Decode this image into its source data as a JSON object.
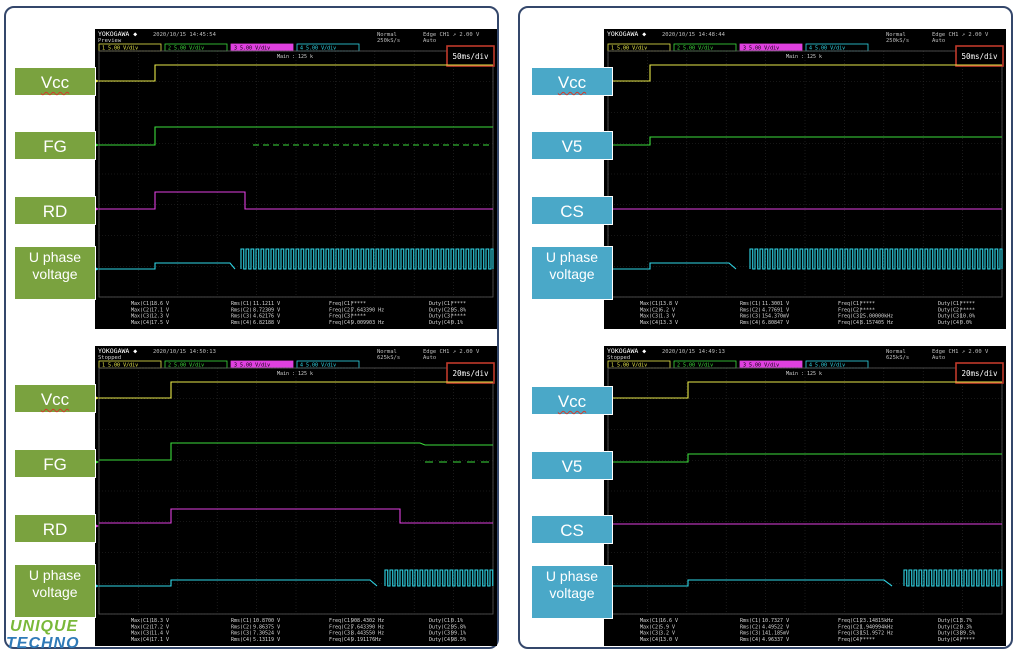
{
  "scopes": [
    {
      "brand": "YOKOGAWA ◆",
      "date": "2020/10/15 14:45:54",
      "status": "Preview",
      "trig_mode": "Normal",
      "sample_rate": "250kS/s",
      "trigger": "Edge CH1 ↗ 2.00 V",
      "trig_sub": "Auto",
      "main_label": "Main : 125 k",
      "timebase": "50ms/div",
      "channels": [
        "5.00 V/div",
        "5.00 V/div",
        "5.00 V/div",
        "5.00 V/div"
      ],
      "measurements": [
        [
          "Max(C1)",
          "18.6 V",
          "Rms(C1)",
          "11.1211 V",
          "Freq(C1)",
          "*****",
          "Duty(C1)",
          "*****"
        ],
        [
          "Max(C2)",
          "17.1 V",
          "Rms(C2)",
          "8.72309 V",
          "Freq(C2)",
          "7.643390 Hz",
          "Duty(C2)",
          "95.8%"
        ],
        [
          "Max(C3)",
          "12.3 V",
          "Rms(C3)",
          "4.62176 V",
          "Freq(C3)",
          "*****",
          "Duty(C3)",
          "*****"
        ],
        [
          "Max(C4)",
          "17.5 V",
          "Rms(C4)",
          "6.82188 V",
          "Freq(C4)",
          "9.009903 Hz",
          "Duty(C4)",
          "0.1%"
        ]
      ]
    },
    {
      "brand": "YOKOGAWA ◆",
      "date": "2020/10/15 14:48:44",
      "status": "",
      "trig_mode": "Normal",
      "sample_rate": "250kS/s",
      "trigger": "Edge CH1 ↗ 2.00 V",
      "trig_sub": "Auto",
      "main_label": "Main : 125 k",
      "timebase": "50ms/div",
      "channels": [
        "5.00 V/div",
        "5.00 V/div",
        "5.00 V/div",
        "5.00 V/div"
      ],
      "measurements": [
        [
          "Max(C1)",
          "13.8 V",
          "Rms(C1)",
          "11.3001 V",
          "Freq(C1)",
          "*****",
          "Duty(C1)",
          "*****"
        ],
        [
          "Max(C2)",
          "6.2 V",
          "Rms(C2)",
          "4.77691 V",
          "Freq(C2)",
          "*****",
          "Duty(C2)",
          "*****"
        ],
        [
          "Max(C3)",
          "1.3 V",
          "Rms(C3)",
          "154.370mV",
          "Freq(C3)",
          "25.00000kHz",
          "Duty(C3)",
          "10.0%"
        ],
        [
          "Max(C4)",
          "13.3 V",
          "Rms(C4)",
          "6.80847 V",
          "Freq(C4)",
          "8.157405 Hz",
          "Duty(C4)",
          "0.0%"
        ]
      ]
    },
    {
      "brand": "YOKOGAWA ◆",
      "date": "2020/10/15 14:50:13",
      "status": "Stopped",
      "trig_mode": "Normal",
      "sample_rate": "625kS/s",
      "trigger": "Edge CH1 ↗ 2.00 V",
      "trig_sub": "Auto",
      "main_label": "Main : 125 k",
      "timebase": "20ms/div",
      "channels": [
        "5.00 V/div",
        "5.00 V/div",
        "5.00 V/div",
        "5.00 V/div"
      ],
      "measurements": [
        [
          "Max(C1)",
          "18.3 V",
          "Rms(C1)",
          "10.8700 V",
          "Freq(C1)",
          "908.4302 Hz",
          "Duty(C1)",
          "0.1%"
        ],
        [
          "Max(C2)",
          "17.2 V",
          "Rms(C2)",
          "9.86375 V",
          "Freq(C2)",
          "7.643390 Hz",
          "Duty(C2)",
          "95.8%"
        ],
        [
          "Max(C3)",
          "11.4 V",
          "Rms(C3)",
          "7.30524 V",
          "Freq(C3)",
          "8.443550 Hz",
          "Duty(C3)",
          "99.1%"
        ],
        [
          "Max(C4)",
          "17.1 V",
          "Rms(C4)",
          "5.13119 V",
          "Freq(C4)",
          "9.191176Hz",
          "Duty(C4)",
          "98.5%"
        ]
      ]
    },
    {
      "brand": "YOKOGAWA ◆",
      "date": "2020/10/15 14:49:13",
      "status": "Stopped",
      "trig_mode": "Normal",
      "sample_rate": "625kS/s",
      "trigger": "Edge CH1 ↗ 2.00 V",
      "trig_sub": "Auto",
      "main_label": "Main : 125 k",
      "timebase": "20ms/div",
      "channels": [
        "5.00 V/div",
        "5.00 V/div",
        "5.00 V/div",
        "5.00 V/div"
      ],
      "measurements": [
        [
          "Max(C1)",
          "16.6 V",
          "Rms(C1)",
          "10.7327 V",
          "Freq(C1)",
          "23.14815kHz",
          "Duty(C1)",
          "3.7%"
        ],
        [
          "Max(C2)",
          "5.9 V",
          "Rms(C2)",
          "4.49522 V",
          "Freq(C2)",
          "1.940994kHz",
          "Duty(C2)",
          "0.3%"
        ],
        [
          "Max(C3)",
          "3.2 V",
          "Rms(C3)",
          "141.185mV",
          "Freq(C3)",
          "151.9572 Hz",
          "Duty(C3)",
          "89.5%"
        ],
        [
          "Max(C4)",
          "13.0 V",
          "Rms(C4)",
          "4.96337 V",
          "Freq(C4)",
          "*****",
          "Duty(C4)",
          "*****"
        ]
      ]
    }
  ],
  "labels": {
    "tl": [
      "Vcc",
      "FG",
      "RD",
      "U phase voltage"
    ],
    "tr": [
      "Vcc",
      "V5",
      "CS",
      "U phase voltage"
    ],
    "bl": [
      "Vcc",
      "FG",
      "RD",
      "U phase voltage"
    ],
    "br": [
      "Vcc",
      "V5",
      "CS",
      "U phase voltage"
    ]
  },
  "logo": {
    "line1": "UNIQUE",
    "line2": "TECHNO"
  },
  "colors": {
    "ch1": "#e8e84a",
    "ch2": "#3cdc3c",
    "ch3": "#e040e0",
    "ch4": "#30d8e8",
    "frame": "#34476b",
    "label_green": "#7aa23f",
    "label_blue": "#4aa8c8"
  }
}
